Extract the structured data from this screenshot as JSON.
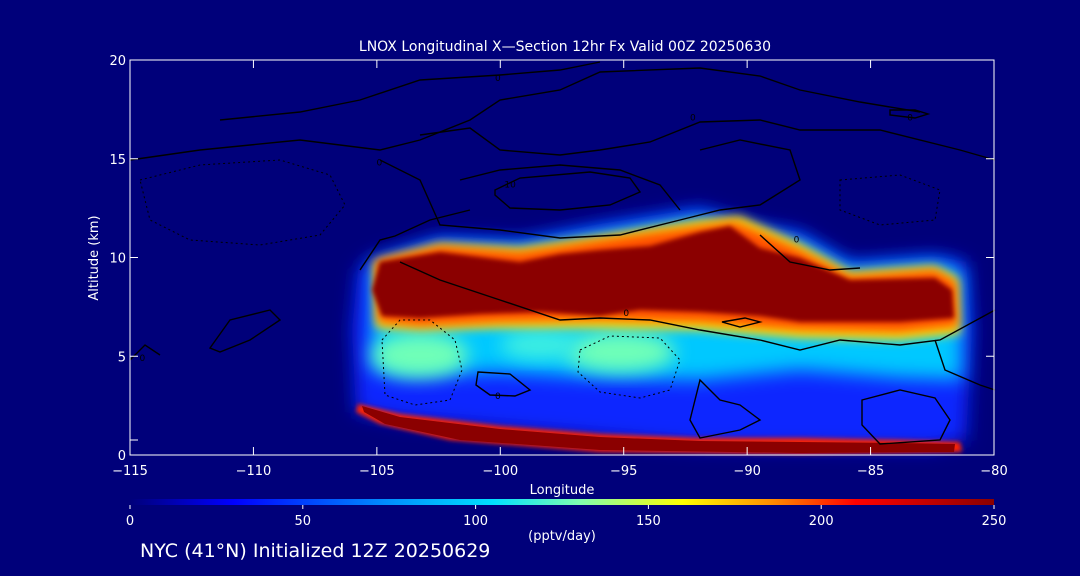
{
  "chart_data": {
    "type": "heatmap",
    "title": "LNOX Longitudinal X—Section 12hr  Fx Valid 00Z 20250630",
    "xlabel": "Longitude",
    "ylabel": "Altitude (km)",
    "xlim": [
      -115,
      -80
    ],
    "ylim": [
      0,
      20
    ],
    "x_ticks": [
      -115,
      -110,
      -105,
      -100,
      -95,
      -90,
      -85,
      -80
    ],
    "x_tick_labels": [
      "−115",
      "−110",
      "−105",
      "−100",
      "−95",
      "−90",
      "−85",
      "−80"
    ],
    "y_ticks": [
      0,
      5,
      10,
      15,
      20
    ],
    "y_tick_labels": [
      "0",
      "5",
      "10",
      "15",
      "20"
    ],
    "colorbar": {
      "label": "(pptv/day)",
      "range": [
        0,
        250
      ],
      "ticks": [
        0,
        50,
        100,
        150,
        200,
        250
      ],
      "tick_labels": [
        "0",
        "50",
        "100",
        "150",
        "200",
        "250"
      ],
      "colors": [
        "#00007a",
        "#0000ff",
        "#00c8ff",
        "#80ffb0",
        "#ffff00",
        "#ff8000",
        "#ff0000",
        "#8b0000"
      ]
    },
    "contour_labels": [
      {
        "text": "0",
        "x": -100.1,
        "y": 19.1
      },
      {
        "text": "0",
        "x": -92.2,
        "y": 17.1
      },
      {
        "text": "0",
        "x": -83.4,
        "y": 17.1
      },
      {
        "text": "0",
        "x": -104.9,
        "y": 14.8
      },
      {
        "text": "10",
        "x": -99.6,
        "y": 13.7
      },
      {
        "text": "0",
        "x": -88.0,
        "y": 10.9
      },
      {
        "text": "0",
        "x": -94.9,
        "y": 7.2
      },
      {
        "text": "0",
        "x": -114.5,
        "y": 4.9
      },
      {
        "text": "0",
        "x": -100.1,
        "y": 3.0
      }
    ],
    "grid": false,
    "legend": "none"
  },
  "caption": "NYC (41°N) Initialized 12Z 20250629",
  "colors": {
    "background": "#00007a",
    "axes": "#ffffff",
    "contour": "#000000",
    "band_high": "#8b0000"
  }
}
